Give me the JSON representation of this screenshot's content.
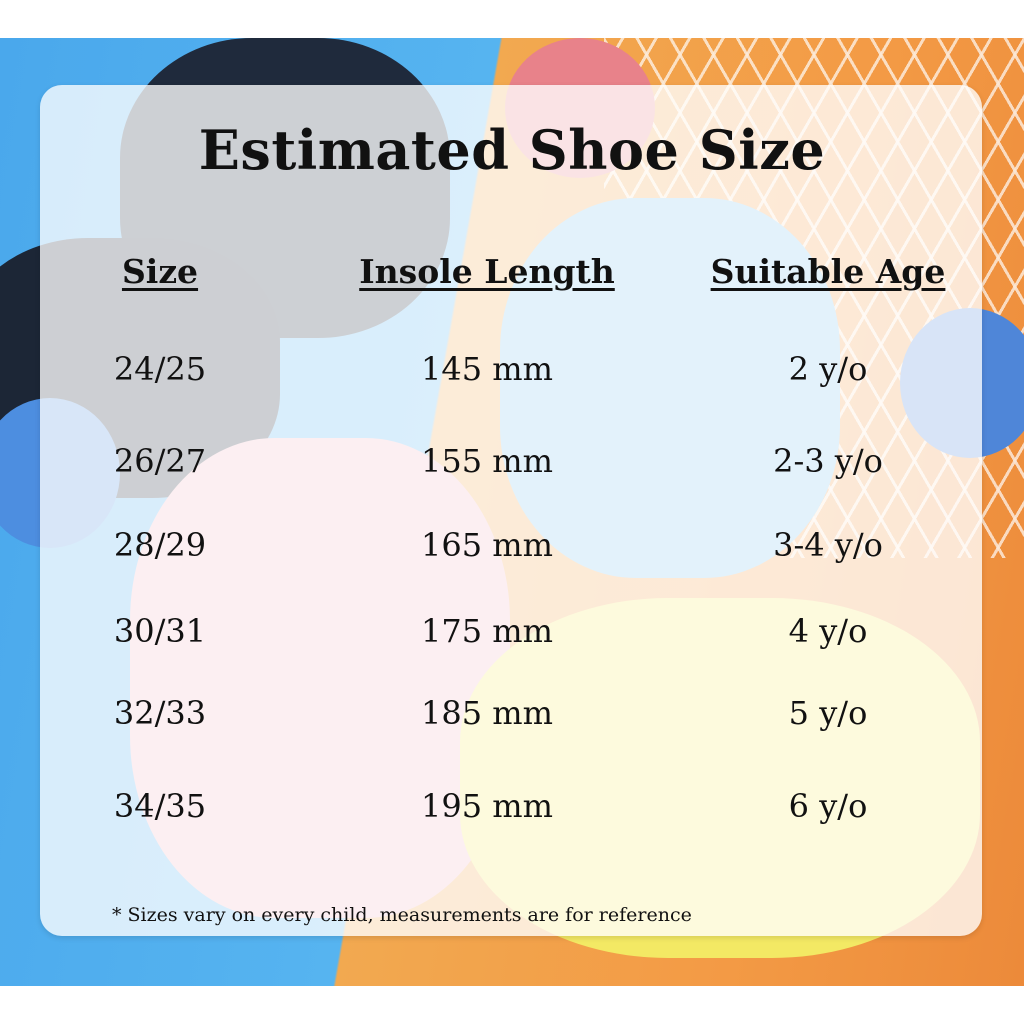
{
  "title": "Estimated Shoe Size",
  "headers": [
    "Size",
    "Insole Length",
    "Suitable Age"
  ],
  "rows": [
    {
      "size": "24/25",
      "insole": "145 mm",
      "age": "2 y/o"
    },
    {
      "size": "26/27",
      "insole": "155 mm",
      "age": "2-3 y/o"
    },
    {
      "size": "28/29",
      "insole": "165 mm",
      "age": "3-4 y/o"
    },
    {
      "size": "30/31",
      "insole": "175 mm",
      "age": "4 y/o"
    },
    {
      "size": "32/33",
      "insole": "185 mm",
      "age": "5 y/o"
    },
    {
      "size": "34/35",
      "insole": "195 mm",
      "age": "6 y/o"
    }
  ],
  "note": "* Sizes vary on every child, measurements are for reference",
  "colors": {
    "blue_bg": "#4aa8ec",
    "orange_bg": "#f39a45",
    "text": "#111111"
  }
}
